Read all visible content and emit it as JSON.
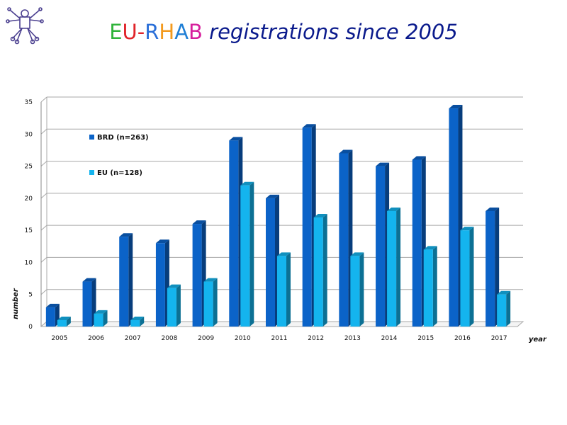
{
  "title": {
    "acronym_parts": [
      {
        "text": "E",
        "color": "#2fb33a"
      },
      {
        "text": "U",
        "color": "#e0242a"
      },
      {
        "text": "-",
        "color": "#e0242a"
      },
      {
        "text": "R",
        "color": "#2a6fd8"
      },
      {
        "text": "H",
        "color": "#f39a1e"
      },
      {
        "text": "A",
        "color": "#1f7fd6"
      },
      {
        "text": "B",
        "color": "#d61f9c"
      }
    ],
    "text": " registrations since 2005",
    "color": "#0a1a8c"
  },
  "logo": {
    "icon": "vitruvian-figure-logo",
    "color": "#4a3f8f"
  },
  "chart_data": {
    "type": "bar",
    "categories": [
      "2005",
      "2006",
      "2007",
      "2008",
      "2009",
      "2010",
      "2011",
      "2012",
      "2013",
      "2014",
      "2015",
      "2016",
      "2017"
    ],
    "series": [
      {
        "name": "BRD (n=263)",
        "values": [
          3,
          7,
          14,
          13,
          16,
          29,
          20,
          31,
          27,
          25,
          26,
          34,
          18
        ],
        "color": "#0b63c8"
      },
      {
        "name": "EU (n=128)",
        "values": [
          1,
          2,
          1,
          6,
          7,
          22,
          11,
          17,
          11,
          18,
          12,
          15,
          5
        ],
        "color": "#14b4ee"
      }
    ],
    "xlabel": "year",
    "ylabel": "number",
    "ylim": [
      0,
      35
    ],
    "yticks": [
      0,
      5,
      10,
      15,
      20,
      25,
      30,
      35
    ],
    "grid": true,
    "legend_position": "top-left"
  }
}
